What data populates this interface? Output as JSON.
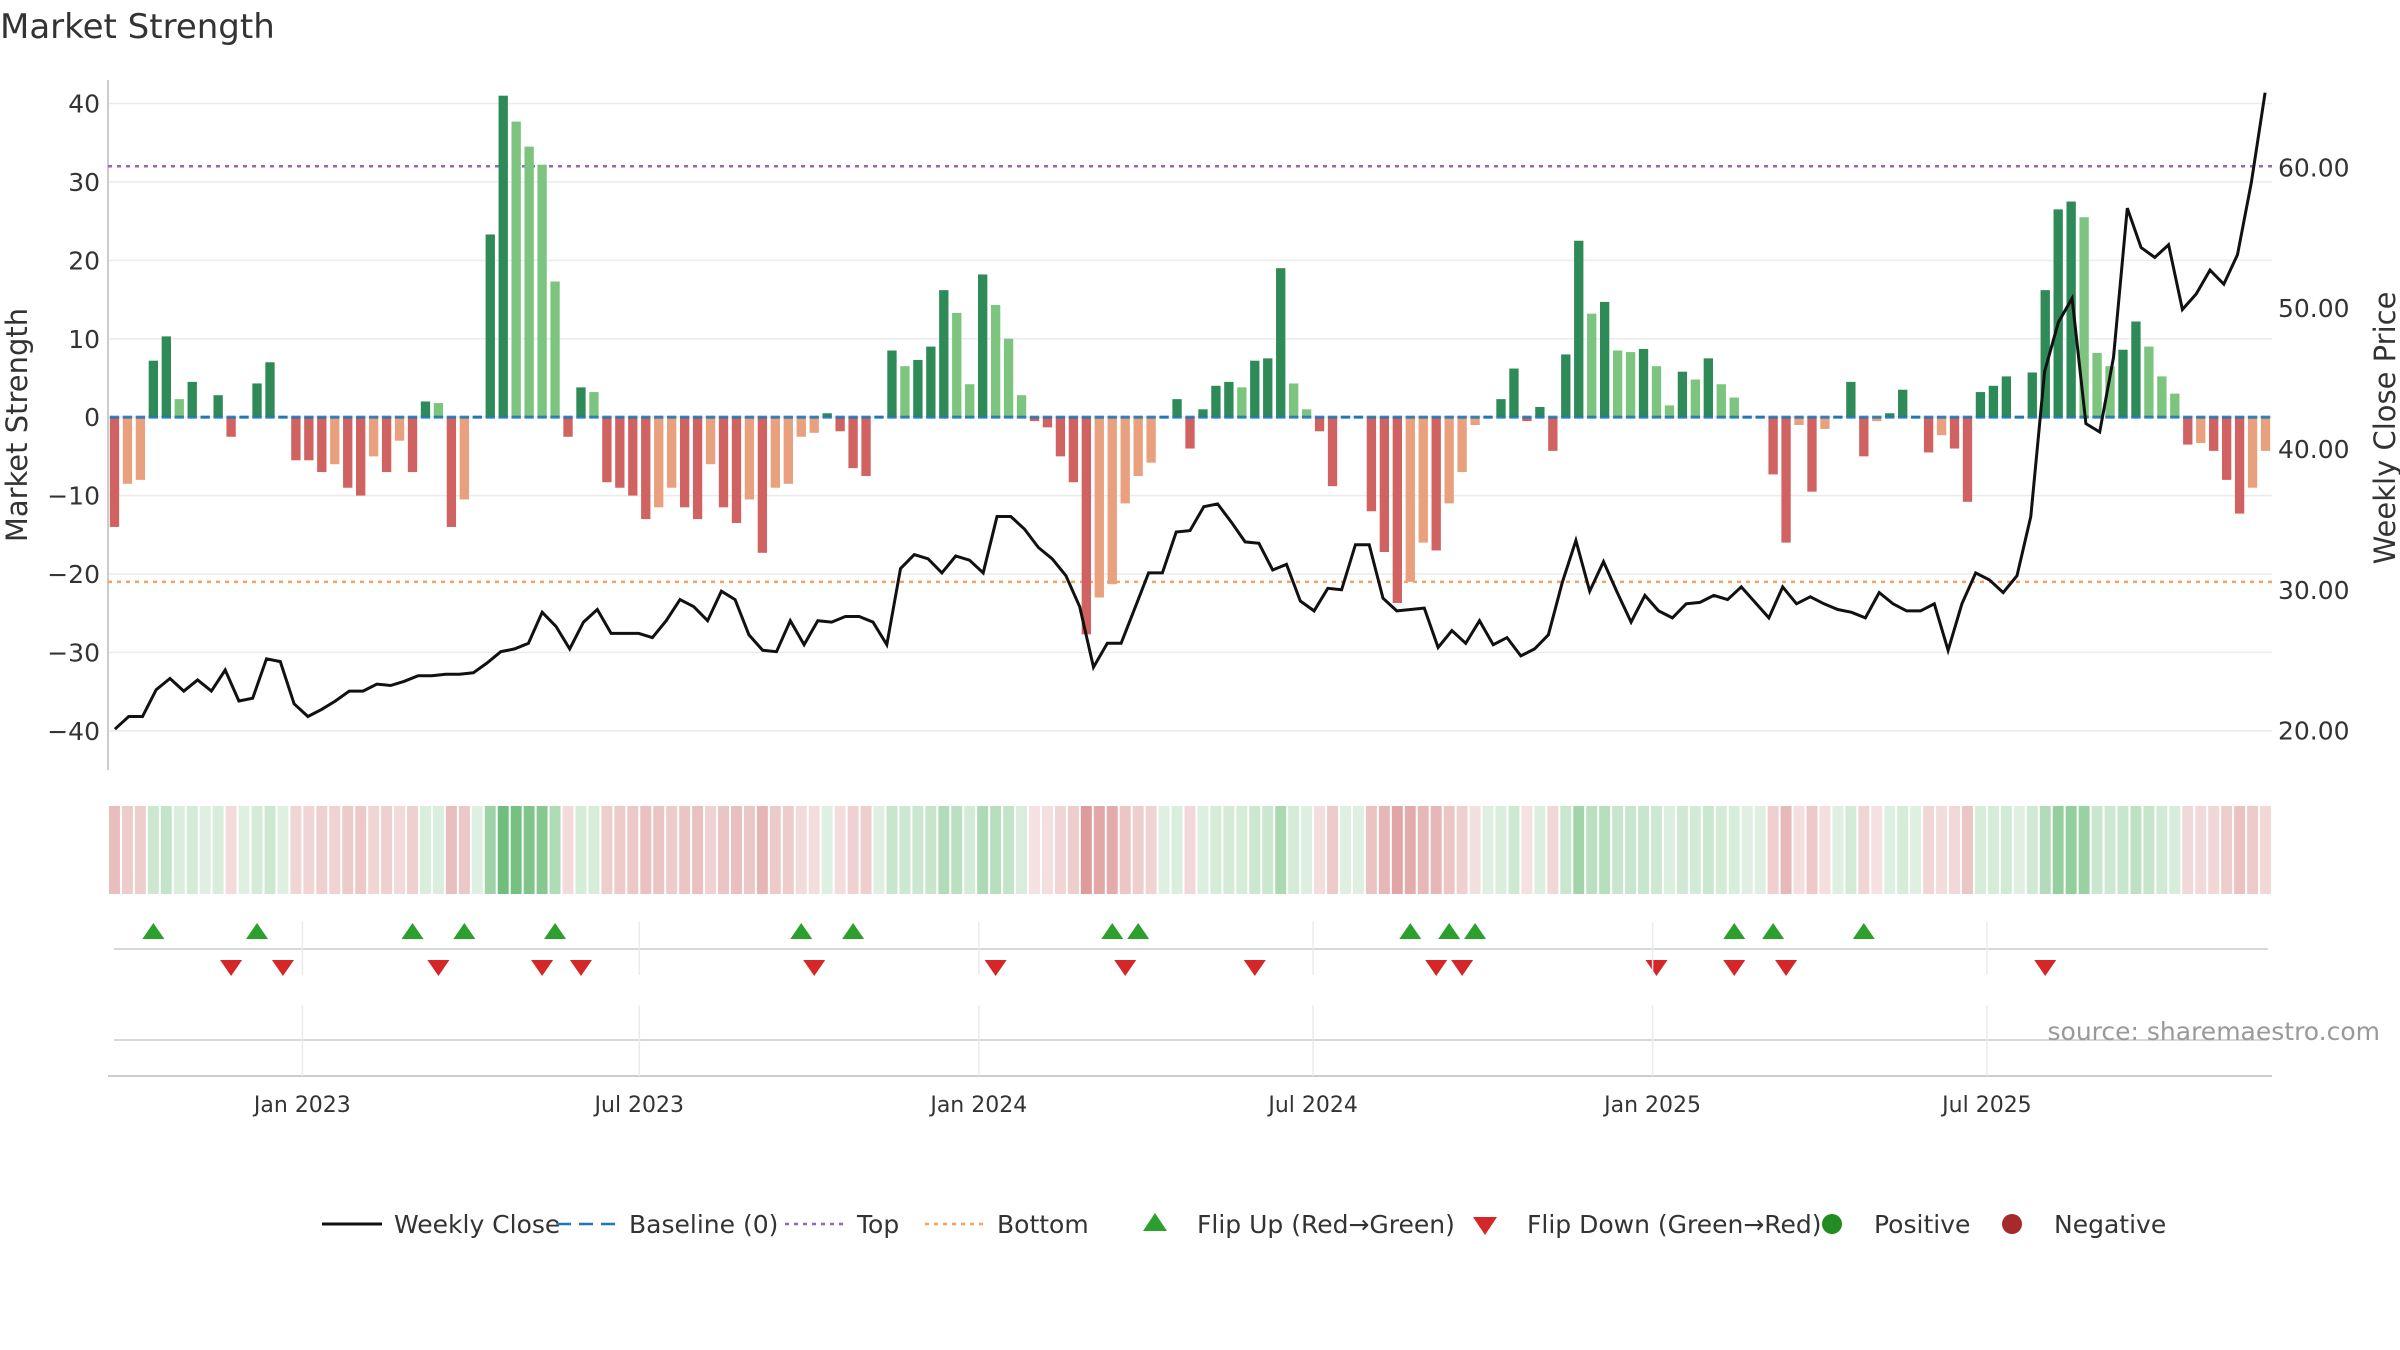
{
  "chart_data": {
    "type": "bar",
    "title": "Market Strength",
    "ylabel_left": "Market Strength",
    "ylabel_right": "Weekly Close Price",
    "source": "source: sharemaestro.com",
    "y_left_ticks": [
      "40",
      "30",
      "20",
      "10",
      "0",
      "−10",
      "−20",
      "−30",
      "−40"
    ],
    "y_left_values": [
      40,
      30,
      20,
      10,
      0,
      -10,
      -20,
      -30,
      -40
    ],
    "ylim_left": [
      -45,
      43
    ],
    "y_right_ticks": [
      "60.00",
      "50.00",
      "40.00",
      "30.00",
      "20.00"
    ],
    "y_right_values": [
      60,
      50,
      40,
      30,
      20
    ],
    "ylim_right": [
      17.2,
      66.2
    ],
    "x_ticks": [
      "Jan 2023",
      "Jul 2023",
      "Jan 2024",
      "Jul 2024",
      "Jan 2025",
      "Jul 2025"
    ],
    "x_tick_positions": [
      15,
      41,
      67.2,
      93,
      119.2,
      145
    ],
    "top_line": 32,
    "bottom_line": -21,
    "strength": [
      -14,
      -8.5,
      -8,
      7.2,
      10.3,
      2.3,
      4.5,
      0,
      2.8,
      -2.5,
      0,
      4.3,
      7,
      0,
      -5.5,
      -5.5,
      -7,
      -6,
      -9,
      -10,
      -5,
      -7,
      -3,
      -7,
      2,
      1.8,
      -14,
      -10.5,
      0,
      23.3,
      41,
      37.7,
      34.5,
      32.2,
      17.3,
      -2.5,
      3.8,
      3.2,
      -8.3,
      -9,
      -10,
      -13,
      -11.5,
      -9,
      -11.5,
      -13,
      -6,
      -11.5,
      -13.5,
      -10.5,
      -17.3,
      -9,
      -8.5,
      -2.5,
      -2,
      0.5,
      -1.8,
      -6.5,
      -7.5,
      0,
      8.5,
      6.5,
      7.3,
      9,
      16.2,
      13.3,
      4.2,
      18.2,
      14.3,
      10,
      2.8,
      -0.5,
      -1.3,
      -5,
      -8.3,
      -27.7,
      -23,
      -21.3,
      -11,
      -7.5,
      -5.8,
      0,
      2.3,
      -4,
      1,
      4,
      4.5,
      3.8,
      7.2,
      7.5,
      19,
      4.3,
      1,
      -1.8,
      -8.8,
      0,
      0,
      -12,
      -17.2,
      -23.7,
      -21,
      -16,
      -17,
      -11,
      -7,
      -1,
      0,
      2.3,
      6.2,
      -0.5,
      1.3,
      -4.3,
      8,
      22.5,
      13.2,
      14.7,
      8.5,
      8.3,
      8.7,
      6.5,
      1.5,
      5.8,
      4.8,
      7.5,
      4.2,
      2.5,
      0,
      0,
      -7.3,
      -16,
      -1,
      -9.5,
      -1.5,
      0,
      4.5,
      -5,
      -0.5,
      0.5,
      3.5,
      0,
      -4.5,
      -2.3,
      -4,
      -10.8,
      3.2,
      4,
      5.2,
      0,
      5.7,
      16.2,
      26.5,
      27.5,
      25.5,
      8.2,
      6.5,
      8.6,
      12.2,
      9,
      5.2,
      3,
      -3.5,
      -3.3,
      -4.3,
      -8,
      -12.3,
      -9,
      -4.3
    ],
    "series": [
      {
        "name": "Weekly Close",
        "color": "#111111",
        "values": [
          20.1,
          21,
          21,
          22.9,
          23.7,
          22.8,
          23.6,
          22.8,
          24.3,
          22.1,
          22.3,
          25.1,
          24.9,
          21.9,
          21,
          21.5,
          22.1,
          22.8,
          22.8,
          23.3,
          23.2,
          23.5,
          23.9,
          23.9,
          24,
          24,
          24.1,
          24.8,
          25.6,
          25.8,
          26.2,
          28.4,
          27.4,
          25.8,
          27.7,
          28.6,
          26.9,
          26.9,
          26.9,
          26.6,
          27.8,
          29.3,
          28.8,
          27.8,
          29.9,
          29.3,
          26.8,
          25.7,
          25.6,
          27.8,
          26.1,
          27.8,
          27.7,
          28.1,
          28.1,
          27.7,
          26.1,
          31.5,
          32.5,
          32.2,
          31.2,
          32.4,
          32.1,
          31.2,
          35.2,
          35.2,
          34.3,
          33,
          32.2,
          31,
          28.8,
          24.5,
          26.2,
          26.2,
          28.7,
          31.2,
          31.2,
          34.1,
          34.2,
          35.9,
          36.1,
          34.8,
          33.4,
          33.3,
          31.4,
          31.8,
          29.2,
          28.5,
          30.1,
          30,
          33.2,
          33.2,
          29.4,
          28.5,
          28.6,
          28.7,
          25.9,
          27.1,
          26.2,
          27.8,
          26.1,
          26.6,
          25.3,
          25.8,
          26.8,
          30.5,
          33.5,
          29.9,
          32,
          29.8,
          27.7,
          29.6,
          28.5,
          28,
          29,
          29.1,
          29.6,
          29.3,
          30.2,
          29.1,
          28,
          30.2,
          29,
          29.5,
          29,
          28.6,
          28.4,
          28,
          29.8,
          29,
          28.5,
          28.5,
          29,
          25.7,
          29,
          31.2,
          30.7,
          29.8,
          31,
          35.2,
          45.5,
          49,
          50.7,
          41.8,
          41.2,
          46.5,
          57.1,
          54.3,
          53.6,
          54.5,
          49.9,
          51,
          52.7,
          51.7,
          53.8,
          58.9,
          65.3
        ]
      },
      {
        "name": "Baseline (0)",
        "color": "#1f77b4",
        "value": 0
      },
      {
        "name": "Top",
        "color": "#9467bd",
        "value": 32
      },
      {
        "name": "Bottom",
        "color": "#f4a261",
        "value": -21
      }
    ],
    "flips_up": [
      3,
      11,
      23,
      27,
      34,
      53,
      57,
      77,
      79,
      100,
      103,
      105,
      125,
      128,
      135
    ],
    "flips_down": [
      9,
      13,
      25,
      33,
      36,
      54,
      68,
      78,
      88,
      102,
      104,
      119,
      125,
      129,
      149
    ],
    "legend": [
      {
        "label": "Weekly Close",
        "kind": "line",
        "color": "#111111"
      },
      {
        "label": "Baseline (0)",
        "kind": "dashed",
        "color": "#1f77b4"
      },
      {
        "label": "Top",
        "kind": "dotted",
        "color": "#9467bd"
      },
      {
        "label": "Bottom",
        "kind": "dotted",
        "color": "#f4a261"
      },
      {
        "label": "Flip Up (Red→Green)",
        "kind": "tri-up",
        "color": "#2ca02c"
      },
      {
        "label": "Flip Down (Green→Red)",
        "kind": "tri-down",
        "color": "#d62728"
      },
      {
        "label": "Positive",
        "kind": "dot",
        "color": "#228b22"
      },
      {
        "label": "Negative",
        "kind": "dot",
        "color": "#a52a2a"
      }
    ],
    "legend_position": "bottom-center",
    "colors": {
      "pos_dark": "#2e8b57",
      "pos_light": "#7dc47f",
      "neg_dark": "#d06262",
      "neg_light": "#e8a07e",
      "grid": "#ebebeb",
      "axis": "#cccccc"
    }
  }
}
